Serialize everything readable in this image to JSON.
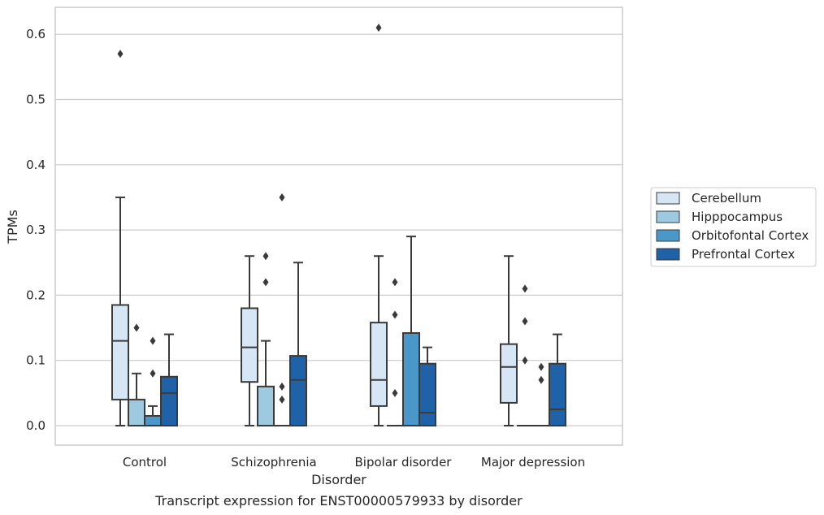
{
  "chart_data": {
    "type": "box",
    "caption": "Transcript expression for ENST00000579933 by disorder",
    "xlabel": "Disorder",
    "ylabel": "TPMs",
    "ylim": [
      -0.03,
      0.64
    ],
    "yticks": [
      "0.0",
      "0.1",
      "0.2",
      "0.3",
      "0.4",
      "0.5",
      "0.6"
    ],
    "ytick_values": [
      0.0,
      0.1,
      0.2,
      0.3,
      0.4,
      0.5,
      0.6
    ],
    "grid": "horizontal",
    "legend_position": "right",
    "categories": [
      "Control",
      "Schizophrenia",
      "Bipolar disorder",
      "Major depression"
    ],
    "series": [
      {
        "name": "Cerebellum",
        "color": "#d6e6f4",
        "boxes": [
          {
            "q1": 0.04,
            "median": 0.13,
            "q3": 0.185,
            "whisker_low": 0.0,
            "whisker_high": 0.35,
            "outliers": [
              0.57
            ]
          },
          {
            "q1": 0.067,
            "median": 0.12,
            "q3": 0.18,
            "whisker_low": 0.0,
            "whisker_high": 0.26,
            "outliers": []
          },
          {
            "q1": 0.03,
            "median": 0.07,
            "q3": 0.158,
            "whisker_low": 0.0,
            "whisker_high": 0.26,
            "outliers": [
              0.61
            ]
          },
          {
            "q1": 0.035,
            "median": 0.09,
            "q3": 0.125,
            "whisker_low": 0.0,
            "whisker_high": 0.26,
            "outliers": []
          }
        ]
      },
      {
        "name": "Hipppocampus",
        "color": "#9ecae1",
        "boxes": [
          {
            "q1": 0.0,
            "median": 0.0,
            "q3": 0.04,
            "whisker_low": 0.0,
            "whisker_high": 0.08,
            "outliers": [
              0.15
            ]
          },
          {
            "q1": 0.0,
            "median": 0.0,
            "q3": 0.06,
            "whisker_low": 0.0,
            "whisker_high": 0.13,
            "outliers": [
              0.22,
              0.26
            ]
          },
          {
            "q1": 0.0,
            "median": 0.0,
            "q3": 0.0,
            "whisker_low": 0.0,
            "whisker_high": 0.0,
            "outliers": [
              0.05,
              0.17,
              0.22
            ]
          },
          {
            "q1": 0.0,
            "median": 0.0,
            "q3": 0.0,
            "whisker_low": 0.0,
            "whisker_high": 0.0,
            "outliers": [
              0.1,
              0.16,
              0.21
            ]
          }
        ]
      },
      {
        "name": "Orbitofontal Cortex",
        "color": "#4a98c9",
        "boxes": [
          {
            "q1": 0.0,
            "median": 0.0,
            "q3": 0.015,
            "whisker_low": 0.0,
            "whisker_high": 0.03,
            "outliers": [
              0.08,
              0.13
            ]
          },
          {
            "q1": 0.0,
            "median": 0.0,
            "q3": 0.0,
            "whisker_low": 0.0,
            "whisker_high": 0.0,
            "outliers": [
              0.04,
              0.06,
              0.35
            ]
          },
          {
            "q1": 0.0,
            "median": 0.0,
            "q3": 0.142,
            "whisker_low": 0.0,
            "whisker_high": 0.29,
            "outliers": []
          },
          {
            "q1": 0.0,
            "median": 0.0,
            "q3": 0.0,
            "whisker_low": 0.0,
            "whisker_high": 0.0,
            "outliers": [
              0.07,
              0.09
            ]
          }
        ]
      },
      {
        "name": "Prefrontal Cortex",
        "color": "#2062a8",
        "boxes": [
          {
            "q1": 0.0,
            "median": 0.05,
            "q3": 0.075,
            "whisker_low": 0.0,
            "whisker_high": 0.14,
            "outliers": []
          },
          {
            "q1": 0.0,
            "median": 0.07,
            "q3": 0.107,
            "whisker_low": 0.0,
            "whisker_high": 0.25,
            "outliers": []
          },
          {
            "q1": 0.0,
            "median": 0.02,
            "q3": 0.095,
            "whisker_low": 0.0,
            "whisker_high": 0.12,
            "outliers": []
          },
          {
            "q1": 0.0,
            "median": 0.025,
            "q3": 0.095,
            "whisker_low": 0.0,
            "whisker_high": 0.14,
            "outliers": []
          }
        ]
      }
    ]
  }
}
